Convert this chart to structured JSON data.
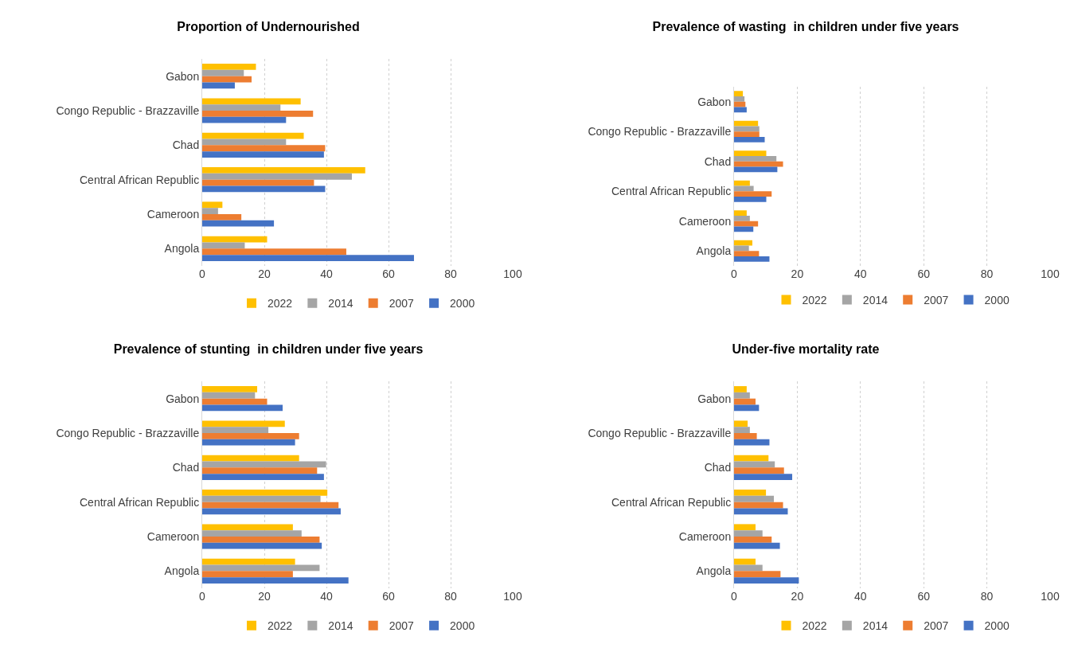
{
  "chart_data": [
    {
      "type": "bar",
      "orientation": "horizontal",
      "title": "Proportion of Undernourished",
      "categories": [
        "Gabon",
        "Congo Republic - Brazzaville",
        "Chad",
        "Central African Republic",
        "Cameroon",
        "Angola"
      ],
      "xlim": [
        0,
        100
      ],
      "xticks": [
        0,
        20,
        40,
        60,
        80,
        100
      ],
      "grid": "x",
      "legend": "bottom",
      "series": [
        {
          "name": "2022",
          "color": "#ffc000",
          "values": [
            17.3,
            31.7,
            32.7,
            52.5,
            6.5,
            20.9
          ]
        },
        {
          "name": "2014",
          "color": "#a5a5a5",
          "values": [
            13.4,
            25.2,
            27.0,
            48.2,
            5.1,
            13.7
          ]
        },
        {
          "name": "2007",
          "color": "#ed7d31",
          "values": [
            15.9,
            35.7,
            39.6,
            36.0,
            12.6,
            46.4
          ]
        },
        {
          "name": "2000",
          "color": "#4472c4",
          "values": [
            10.5,
            27.0,
            39.2,
            39.6,
            23.1,
            68.2
          ]
        }
      ]
    },
    {
      "type": "bar",
      "orientation": "horizontal",
      "title": "Prevalence of wasting  in children under five years",
      "categories": [
        "Gabon",
        "Congo Republic - Brazzaville",
        "Chad",
        "Central African Republic",
        "Cameroon",
        "Angola"
      ],
      "xlim": [
        0,
        100
      ],
      "xticks": [
        0,
        20,
        40,
        60,
        80,
        100
      ],
      "grid": "x",
      "legend": "bottom",
      "series": [
        {
          "name": "2022",
          "color": "#ffc000",
          "values": [
            2.8,
            7.6,
            10.2,
            5.0,
            4.0,
            5.8
          ]
        },
        {
          "name": "2014",
          "color": "#a5a5a5",
          "values": [
            3.3,
            8.0,
            13.4,
            6.2,
            5.0,
            4.7
          ]
        },
        {
          "name": "2007",
          "color": "#ed7d31",
          "values": [
            3.6,
            8.0,
            15.5,
            11.9,
            7.6,
            7.9
          ]
        },
        {
          "name": "2000",
          "color": "#4472c4",
          "values": [
            4.0,
            9.7,
            13.7,
            10.2,
            6.1,
            11.2
          ]
        }
      ]
    },
    {
      "type": "bar",
      "orientation": "horizontal",
      "title": "Prevalence of stunting  in children under five years",
      "categories": [
        "Gabon",
        "Congo Republic - Brazzaville",
        "Chad",
        "Central African Republic",
        "Cameroon",
        "Angola"
      ],
      "xlim": [
        0,
        100
      ],
      "xticks": [
        0,
        20,
        40,
        60,
        80,
        100
      ],
      "grid": "x",
      "legend": "bottom",
      "series": [
        {
          "name": "2022",
          "color": "#ffc000",
          "values": [
            17.7,
            26.6,
            31.2,
            40.3,
            29.2,
            29.9
          ]
        },
        {
          "name": "2014",
          "color": "#a5a5a5",
          "values": [
            17.0,
            21.3,
            39.9,
            38.1,
            32.0,
            37.8
          ]
        },
        {
          "name": "2007",
          "color": "#ed7d31",
          "values": [
            20.9,
            31.2,
            37.0,
            43.9,
            37.8,
            29.2
          ]
        },
        {
          "name": "2000",
          "color": "#4472c4",
          "values": [
            25.9,
            29.9,
            39.2,
            44.6,
            38.5,
            47.1
          ]
        }
      ]
    },
    {
      "type": "bar",
      "orientation": "horizontal",
      "title": "Under-five mortality rate",
      "categories": [
        "Gabon",
        "Congo Republic - Brazzaville",
        "Chad",
        "Central African Republic",
        "Cameroon",
        "Angola"
      ],
      "xlim": [
        0,
        100
      ],
      "xticks": [
        0,
        20,
        40,
        60,
        80,
        100
      ],
      "grid": "x",
      "legend": "bottom",
      "series": [
        {
          "name": "2022",
          "color": "#ffc000",
          "values": [
            4.0,
            4.3,
            10.9,
            10.1,
            6.8,
            6.8
          ]
        },
        {
          "name": "2014",
          "color": "#a5a5a5",
          "values": [
            5.0,
            5.0,
            12.9,
            12.6,
            9.0,
            9.0
          ]
        },
        {
          "name": "2007",
          "color": "#ed7d31",
          "values": [
            6.8,
            7.2,
            15.8,
            15.5,
            11.9,
            14.7
          ]
        },
        {
          "name": "2000",
          "color": "#4472c4",
          "values": [
            7.9,
            11.2,
            18.4,
            17.0,
            14.5,
            20.5
          ]
        }
      ]
    }
  ]
}
